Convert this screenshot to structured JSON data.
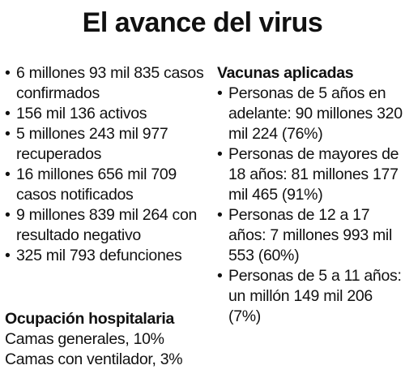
{
  "title": "El avance del virus",
  "cases": [
    "6 millones 93 mil 835 casos confirmados",
    "156 mil 136 activos",
    "5 millones 243 mil 977 recuperados",
    "16 millones 656 mil 709 casos notificados",
    "9 millones 839 mil 264 con resultado negativo",
    "325 mil 793 defunciones"
  ],
  "hospital": {
    "heading": "Ocupación hospitalaria",
    "lines": [
      "Camas generales, 10%",
      "Camas con ventilador, 3%"
    ]
  },
  "vaccines": {
    "heading": "Vacunas aplicadas",
    "items": [
      "Personas de 5 años en adelante: 90 millones 320 mil 224 (76%)",
      "Personas de mayores de 18 años: 81 millones 177 mil 465 (91%)",
      "Personas de 12 a 17 años: 7 millones 993 mil 553 (60%)",
      "Personas de 5 a 11 años: un millón 149 mil 206 (7%)"
    ]
  }
}
